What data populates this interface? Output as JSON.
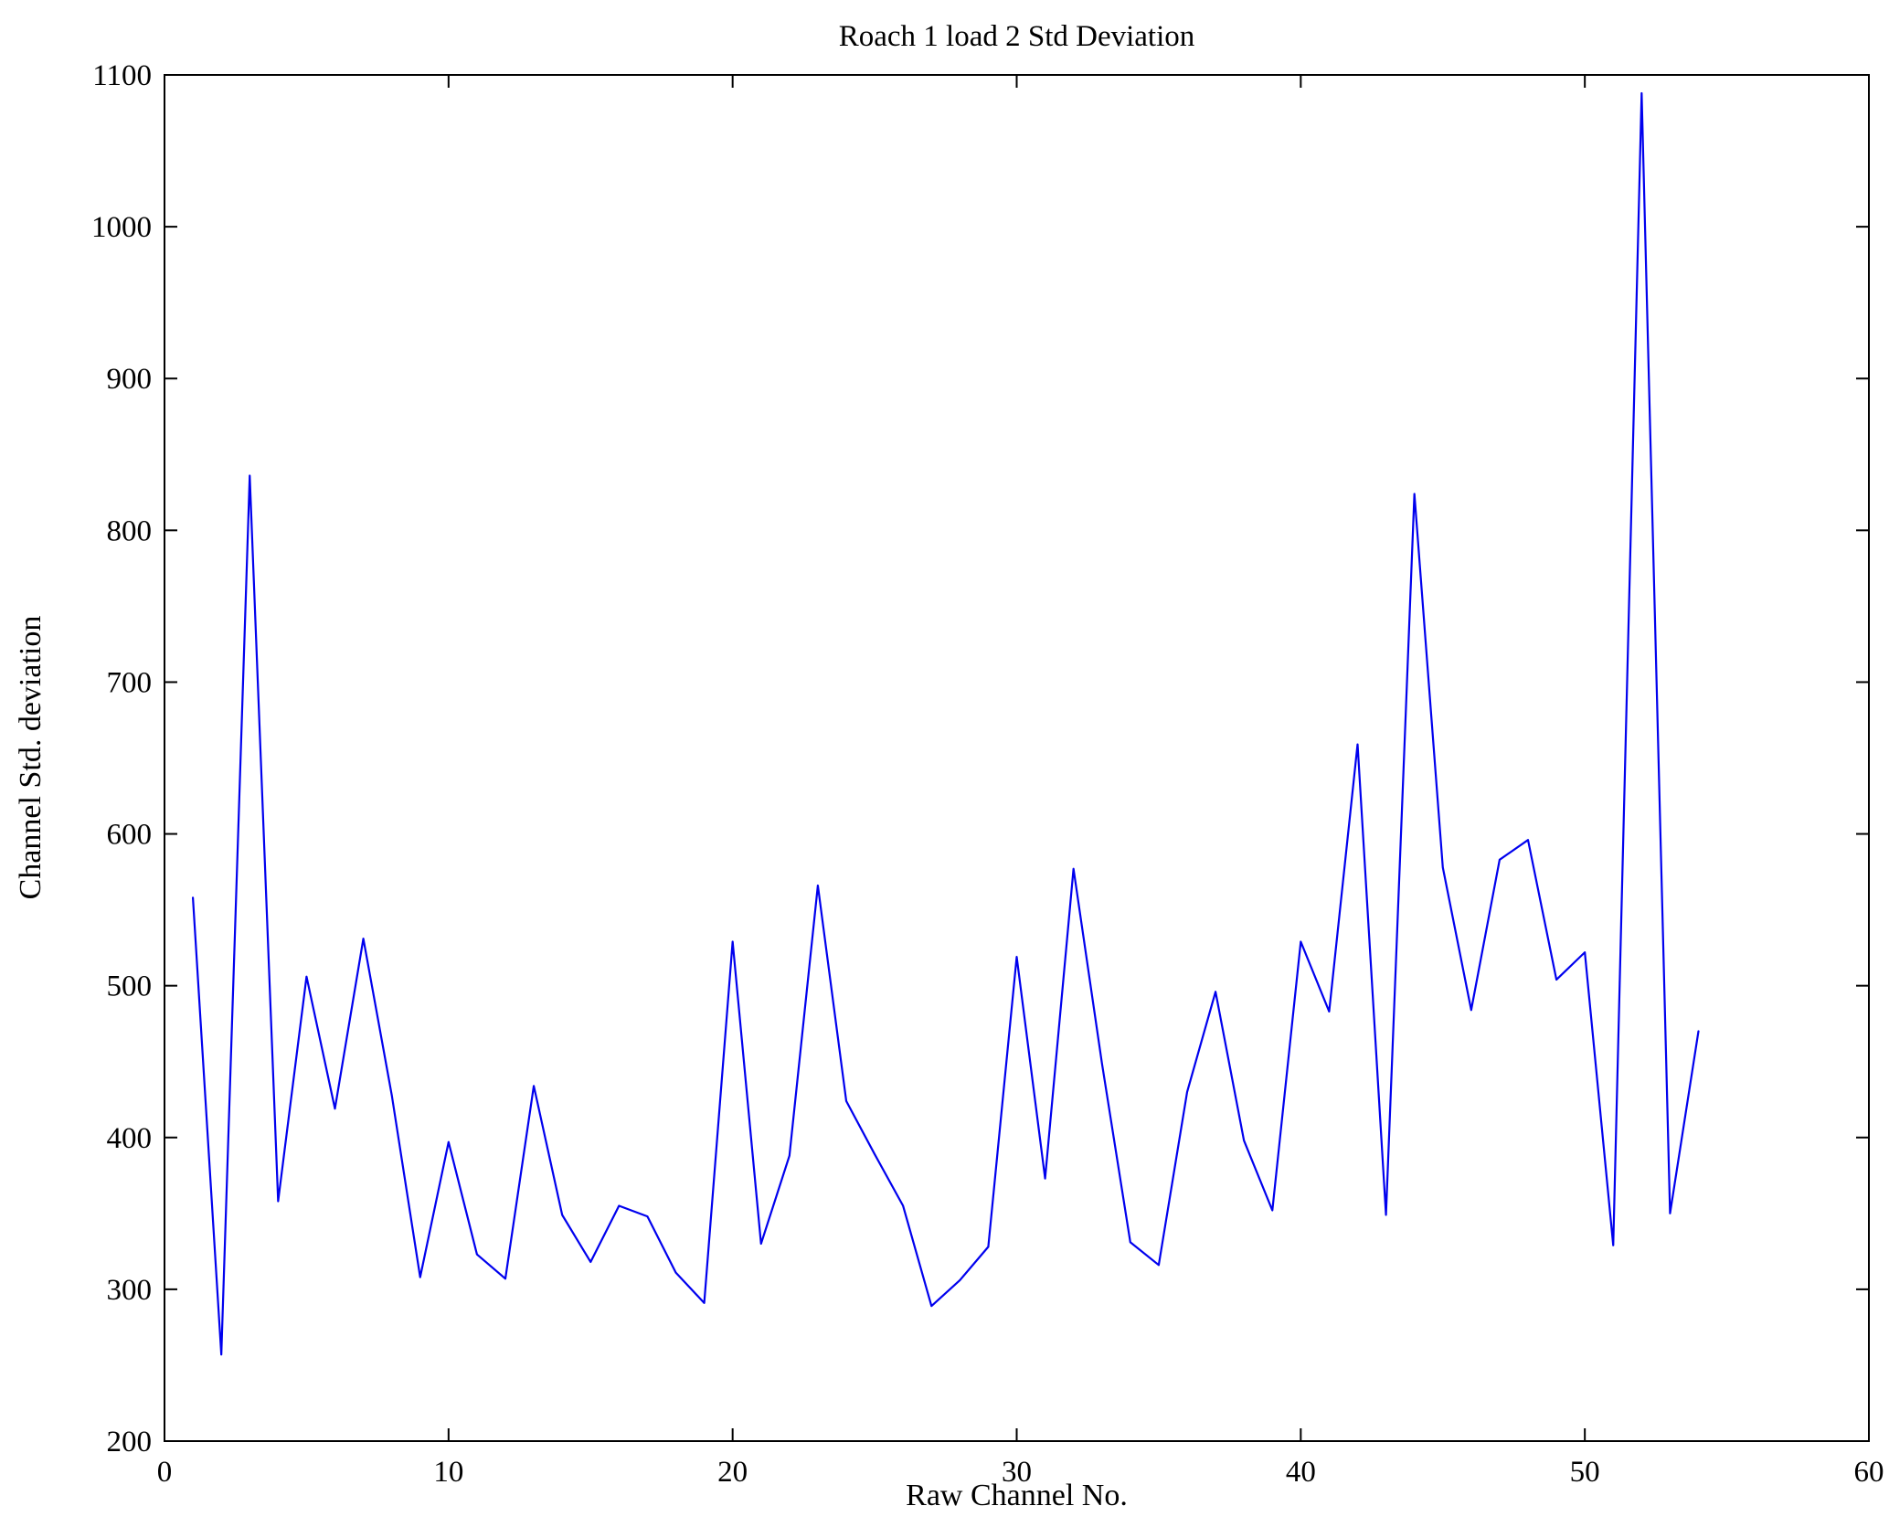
{
  "chart_data": {
    "type": "line",
    "title": "Roach 1 load 2 Std Deviation",
    "xlabel": "Raw Channel No.",
    "ylabel": "Channel Std. deviation",
    "xlim": [
      0,
      60
    ],
    "ylim": [
      200,
      1100
    ],
    "xticks": [
      0,
      10,
      20,
      30,
      40,
      50,
      60
    ],
    "yticks": [
      200,
      300,
      400,
      500,
      600,
      700,
      800,
      900,
      1000,
      1100
    ],
    "grid": false,
    "legend": "none",
    "line_color": "#0000EE",
    "axis_color": "#000000",
    "x": [
      1,
      2,
      3,
      4,
      5,
      6,
      7,
      8,
      9,
      10,
      11,
      12,
      13,
      14,
      15,
      16,
      17,
      18,
      19,
      20,
      21,
      22,
      23,
      24,
      25,
      26,
      27,
      28,
      29,
      30,
      31,
      32,
      33,
      34,
      35,
      36,
      37,
      38,
      39,
      40,
      41,
      42,
      43,
      44,
      45,
      46,
      47,
      48,
      49,
      50,
      51,
      52,
      53,
      54
    ],
    "values": [
      558,
      257,
      836,
      358,
      506,
      419,
      531,
      428,
      308,
      397,
      323,
      307,
      434,
      349,
      318,
      355,
      348,
      311,
      291,
      529,
      330,
      388,
      566,
      424,
      389,
      355,
      289,
      306,
      328,
      519,
      373,
      577,
      449,
      331,
      316,
      430,
      496,
      398,
      352,
      529,
      483,
      659,
      349,
      824,
      578,
      484,
      583,
      596,
      504,
      522,
      329,
      1088,
      350,
      470
    ]
  }
}
